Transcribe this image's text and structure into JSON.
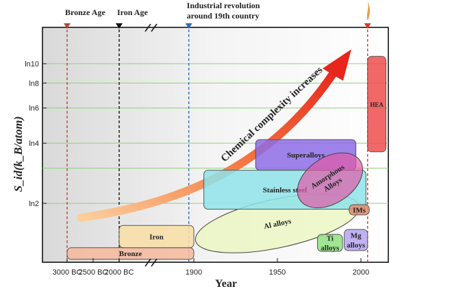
{
  "chart_data": {
    "type": "timeline-bubble",
    "xlabel": "Year",
    "ylabel": "S_id(k_B/atom)",
    "x_ticks": [
      "3000 BC",
      "2500 BC",
      "2000 BC",
      "1900",
      "1950",
      "2000"
    ],
    "y_ticks": [
      "ln2",
      "ln4",
      "ln6",
      "ln8",
      "ln10"
    ],
    "y_tick_values": [
      2,
      4,
      6,
      8,
      10
    ],
    "top_markers": [
      {
        "label": "Bronze Age",
        "x": "3000 BC",
        "color": "#b5473a"
      },
      {
        "label": "Iron Age",
        "x": "2000 BC",
        "color": "#111111"
      },
      {
        "label": "Industrial revolution\naround 19th country",
        "x": "1897",
        "color": "#2f6db5"
      },
      {
        "label": "",
        "x": "2004",
        "color": "#d9372b"
      }
    ],
    "trend_label": "Chemical complexity increases",
    "materials": [
      {
        "name": "Bronze",
        "x_from": "3000 BC",
        "x_to": "1900",
        "s_from": 1.05,
        "s_to": 1.2,
        "color": "#f6b89c"
      },
      {
        "name": "Iron",
        "x_from": "2000 BC",
        "x_to": "1900",
        "s_from": 1.2,
        "s_to": 1.55,
        "color": "#f9dea6"
      },
      {
        "name": "Al alloys",
        "x_from": 1900,
        "x_to": 2000,
        "s_from": 1.2,
        "s_to": 2.1,
        "color": "#eaf5b8",
        "shape": "ellipse"
      },
      {
        "name": "Stainless steel",
        "x_from": 1906,
        "x_to": 2003,
        "s_from": 1.87,
        "s_to": 2.93,
        "color": "#8ee3ea"
      },
      {
        "name": "Superalloys",
        "x_from": 1937,
        "x_to": 1997,
        "s_from": 2.93,
        "s_to": 4.17,
        "color": "#8e6ce6"
      },
      {
        "name": "Amorphous\nAlloys",
        "x_from": 1960,
        "x_to": 2003,
        "s_from": 2.0,
        "s_to": 3.4,
        "color": "#e15aa6",
        "shape": "ellipse"
      },
      {
        "name": "HEA",
        "x_from": 2004,
        "x_to": 2015,
        "s_from": 3.62,
        "s_to": 10.88,
        "color": "#ee4d4d"
      },
      {
        "name": "IMs",
        "x_from": 1993,
        "x_to": 2005,
        "s_from": 1.75,
        "s_to": 1.97,
        "color": "#e48a6c"
      },
      {
        "name": "Ti\nalloys",
        "x_from": 1974,
        "x_to": 1989,
        "s_from": 1.15,
        "s_to": 1.4,
        "color": "#8fe07f"
      },
      {
        "name": "Mg\nalloys",
        "x_from": 1990,
        "x_to": 2004,
        "s_from": 1.16,
        "s_to": 1.48,
        "color": "#b5a4f0"
      }
    ]
  }
}
